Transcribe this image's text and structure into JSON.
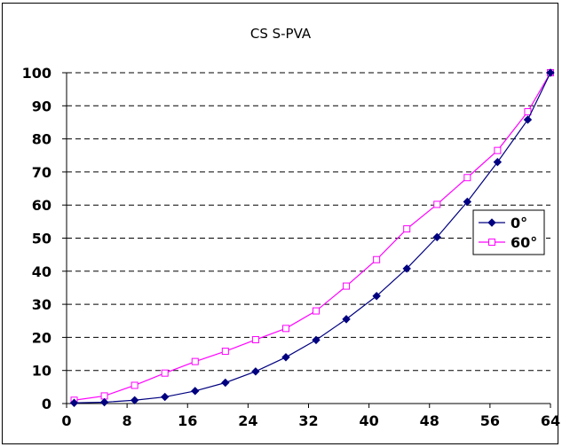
{
  "chart_data": {
    "type": "line",
    "title": "CS S-PVA",
    "xlabel": "",
    "ylabel": "",
    "xlim": [
      0,
      64
    ],
    "ylim": [
      0,
      100
    ],
    "x_ticks": [
      "0",
      "8",
      "16",
      "24",
      "32",
      "40",
      "48",
      "56",
      "64"
    ],
    "y_ticks": [
      "0",
      "10",
      "20",
      "30",
      "40",
      "50",
      "60",
      "70",
      "80",
      "90",
      "100"
    ],
    "grid": "horizontal dashed",
    "legend_position": "right",
    "series": [
      {
        "name": "0°",
        "color": "#000080",
        "marker": "diamond-filled",
        "x": [
          1,
          5,
          9,
          13,
          17,
          21,
          25,
          29,
          33,
          37,
          41,
          45,
          49,
          53,
          57,
          61,
          64
        ],
        "values": [
          0.2,
          0.4,
          1.0,
          2.0,
          3.8,
          6.3,
          9.7,
          14.0,
          19.2,
          25.5,
          32.5,
          40.8,
          50.3,
          61.0,
          73.0,
          85.8,
          100
        ]
      },
      {
        "name": "60°",
        "color": "#ff00ff",
        "marker": "square-open",
        "x": [
          1,
          5,
          9,
          13,
          17,
          21,
          25,
          29,
          33,
          37,
          41,
          45,
          49,
          53,
          57,
          61,
          64
        ],
        "values": [
          1.0,
          2.3,
          5.5,
          9.2,
          12.7,
          15.8,
          19.3,
          22.7,
          28.0,
          35.5,
          43.5,
          52.8,
          60.2,
          68.3,
          76.5,
          88.2,
          100
        ]
      }
    ]
  }
}
